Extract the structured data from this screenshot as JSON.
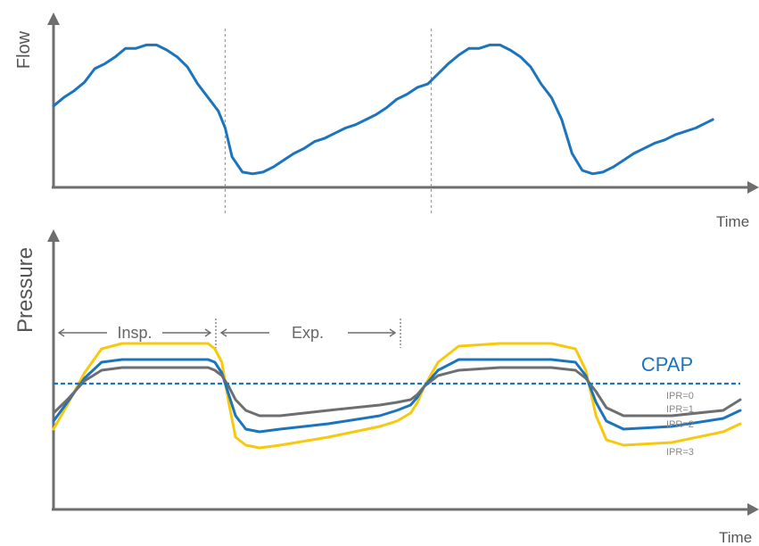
{
  "chart_data": [
    {
      "type": "line",
      "title": "",
      "xlabel": "Time",
      "ylabel": "Flow",
      "x_range": [
        0,
        2
      ],
      "y_range": [
        0,
        1
      ],
      "grid": false,
      "legend": "none",
      "color": "#1b74bc",
      "markers": {
        "phase_boundaries": [
          0.5,
          1.1
        ]
      },
      "series": [
        {
          "x": [
            0,
            0.03,
            0.06,
            0.09,
            0.12,
            0.15,
            0.18,
            0.21,
            0.24,
            0.27,
            0.3,
            0.33,
            0.36,
            0.39,
            0.42,
            0.45,
            0.48,
            0.5,
            0.52,
            0.55,
            0.58,
            0.61,
            0.64,
            0.67,
            0.7,
            0.73,
            0.76,
            0.79,
            0.82,
            0.85,
            0.88,
            0.91,
            0.94,
            0.97,
            1.0,
            1.03,
            1.06,
            1.09,
            1.1,
            1.12,
            1.15,
            1.18,
            1.21,
            1.24,
            1.27,
            1.3,
            1.33,
            1.36,
            1.39,
            1.42,
            1.45,
            1.48,
            1.51,
            1.54,
            1.57,
            1.6,
            1.63,
            1.66,
            1.69,
            1.72,
            1.75,
            1.78,
            1.81,
            1.84,
            1.87,
            1.9,
            1.92
          ],
          "y": [
            0.48,
            0.53,
            0.57,
            0.62,
            0.7,
            0.73,
            0.77,
            0.82,
            0.82,
            0.84,
            0.84,
            0.81,
            0.77,
            0.71,
            0.61,
            0.53,
            0.45,
            0.35,
            0.18,
            0.09,
            0.08,
            0.09,
            0.12,
            0.16,
            0.2,
            0.23,
            0.27,
            0.29,
            0.32,
            0.35,
            0.37,
            0.4,
            0.43,
            0.47,
            0.52,
            0.55,
            0.59,
            0.61,
            0.63,
            0.67,
            0.73,
            0.78,
            0.82,
            0.82,
            0.84,
            0.84,
            0.81,
            0.77,
            0.71,
            0.61,
            0.53,
            0.4,
            0.2,
            0.1,
            0.08,
            0.09,
            0.12,
            0.16,
            0.2,
            0.23,
            0.26,
            0.28,
            0.31,
            0.33,
            0.35,
            0.38,
            0.4
          ]
        }
      ]
    },
    {
      "type": "line",
      "title": "",
      "xlabel": "Time",
      "ylabel": "Pressure",
      "x_range": [
        0,
        2
      ],
      "y_range": [
        0,
        1
      ],
      "grid": false,
      "legend": "right",
      "reference_line": {
        "label": "CPAP",
        "y": 0.47,
        "style": "dashed",
        "color": "#1b74bc"
      },
      "phases": [
        {
          "label": "Insp.",
          "from": 0,
          "to": 0.5
        },
        {
          "label": "Exp.",
          "from": 0.5,
          "to": 1.1
        }
      ],
      "series": [
        {
          "name": "IPR=0",
          "color": "#1b74bc",
          "x": [
            0,
            2
          ],
          "y": [
            0.47,
            0.47
          ]
        },
        {
          "name": "IPR=1",
          "color": "#6d6e71",
          "x": [
            0,
            0.04,
            0.09,
            0.14,
            0.2,
            0.3,
            0.4,
            0.45,
            0.47,
            0.49,
            0.51,
            0.53,
            0.56,
            0.6,
            0.66,
            0.8,
            0.95,
            1.0,
            1.04,
            1.06,
            1.08,
            1.12,
            1.18,
            1.3,
            1.45,
            1.52,
            1.55,
            1.58,
            1.61,
            1.66,
            1.8,
            1.95,
            2.0
          ],
          "y": [
            0.36,
            0.41,
            0.48,
            0.52,
            0.53,
            0.53,
            0.53,
            0.53,
            0.52,
            0.5,
            0.46,
            0.41,
            0.37,
            0.35,
            0.35,
            0.37,
            0.39,
            0.4,
            0.41,
            0.43,
            0.46,
            0.5,
            0.52,
            0.53,
            0.53,
            0.52,
            0.49,
            0.44,
            0.38,
            0.35,
            0.35,
            0.37,
            0.41
          ]
        },
        {
          "name": "IPR=2",
          "color": "#1b74bc",
          "x": [
            0,
            0.04,
            0.09,
            0.14,
            0.2,
            0.3,
            0.4,
            0.45,
            0.47,
            0.49,
            0.51,
            0.53,
            0.56,
            0.6,
            0.66,
            0.8,
            0.95,
            1.0,
            1.04,
            1.06,
            1.08,
            1.12,
            1.18,
            1.3,
            1.45,
            1.52,
            1.55,
            1.58,
            1.61,
            1.66,
            1.8,
            1.95,
            2.0
          ],
          "y": [
            0.33,
            0.4,
            0.49,
            0.55,
            0.56,
            0.56,
            0.56,
            0.56,
            0.55,
            0.51,
            0.43,
            0.35,
            0.3,
            0.29,
            0.3,
            0.32,
            0.35,
            0.37,
            0.39,
            0.42,
            0.46,
            0.52,
            0.56,
            0.56,
            0.56,
            0.55,
            0.5,
            0.4,
            0.33,
            0.3,
            0.31,
            0.34,
            0.37
          ]
        },
        {
          "name": "IPR=3",
          "color": "#f7c90c",
          "x": [
            0,
            0.04,
            0.09,
            0.14,
            0.2,
            0.3,
            0.4,
            0.45,
            0.47,
            0.49,
            0.51,
            0.53,
            0.56,
            0.6,
            0.66,
            0.8,
            0.95,
            1.0,
            1.04,
            1.06,
            1.08,
            1.12,
            1.18,
            1.3,
            1.45,
            1.52,
            1.55,
            1.58,
            1.61,
            1.66,
            1.8,
            1.95,
            2.0
          ],
          "y": [
            0.3,
            0.39,
            0.51,
            0.6,
            0.62,
            0.62,
            0.62,
            0.62,
            0.6,
            0.55,
            0.4,
            0.27,
            0.24,
            0.23,
            0.24,
            0.27,
            0.31,
            0.33,
            0.36,
            0.4,
            0.46,
            0.55,
            0.61,
            0.62,
            0.62,
            0.6,
            0.52,
            0.35,
            0.26,
            0.24,
            0.25,
            0.29,
            0.32
          ]
        }
      ]
    }
  ],
  "flow_axis": {
    "ylabel": "Flow",
    "xlabel": "Time"
  },
  "pressure_axis": {
    "ylabel": "Pressure",
    "xlabel": "Time"
  },
  "phases": {
    "insp_label": "Insp.",
    "exp_label": "Exp."
  },
  "cpap": {
    "label": "CPAP",
    "color": "#1b74bc"
  },
  "ipr_labels": [
    "IPR=0",
    "IPR=1",
    "IPR=2",
    "IPR=3"
  ],
  "colors": {
    "blue": "#1b74bc",
    "gray": "#6d6e71",
    "yellow": "#f7c90c",
    "axis": "#6e6e6e"
  }
}
